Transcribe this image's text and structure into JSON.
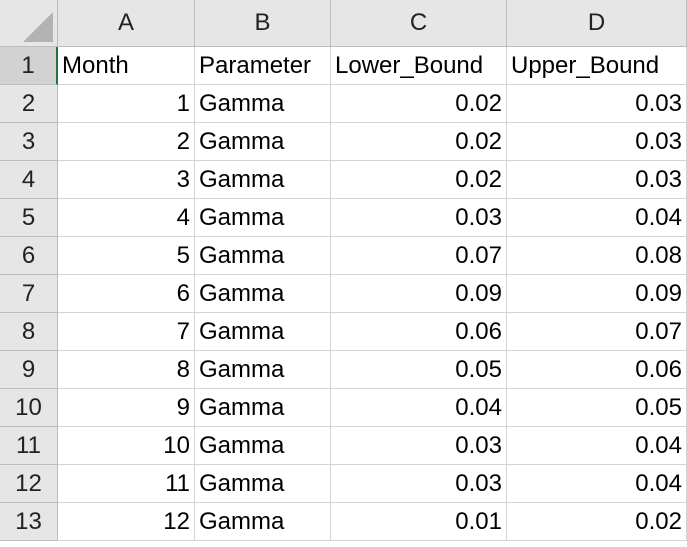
{
  "columns": [
    "A",
    "B",
    "C",
    "D"
  ],
  "rows": [
    {
      "num": "1",
      "cells": [
        "Month",
        "Parameter",
        "Lower_Bound",
        "Upper_Bound"
      ]
    },
    {
      "num": "2",
      "cells": [
        "1",
        "Gamma",
        "0.02",
        "0.03"
      ]
    },
    {
      "num": "3",
      "cells": [
        "2",
        "Gamma",
        "0.02",
        "0.03"
      ]
    },
    {
      "num": "4",
      "cells": [
        "3",
        "Gamma",
        "0.02",
        "0.03"
      ]
    },
    {
      "num": "5",
      "cells": [
        "4",
        "Gamma",
        "0.03",
        "0.04"
      ]
    },
    {
      "num": "6",
      "cells": [
        "5",
        "Gamma",
        "0.07",
        "0.08"
      ]
    },
    {
      "num": "7",
      "cells": [
        "6",
        "Gamma",
        "0.09",
        "0.09"
      ]
    },
    {
      "num": "8",
      "cells": [
        "7",
        "Gamma",
        "0.06",
        "0.07"
      ]
    },
    {
      "num": "9",
      "cells": [
        "8",
        "Gamma",
        "0.05",
        "0.06"
      ]
    },
    {
      "num": "10",
      "cells": [
        "9",
        "Gamma",
        "0.04",
        "0.05"
      ]
    },
    {
      "num": "11",
      "cells": [
        "10",
        "Gamma",
        "0.03",
        "0.04"
      ]
    },
    {
      "num": "12",
      "cells": [
        "11",
        "Gamma",
        "0.03",
        "0.04"
      ]
    },
    {
      "num": "13",
      "cells": [
        "12",
        "Gamma",
        "0.01",
        "0.02"
      ]
    }
  ],
  "selected_row": "1"
}
